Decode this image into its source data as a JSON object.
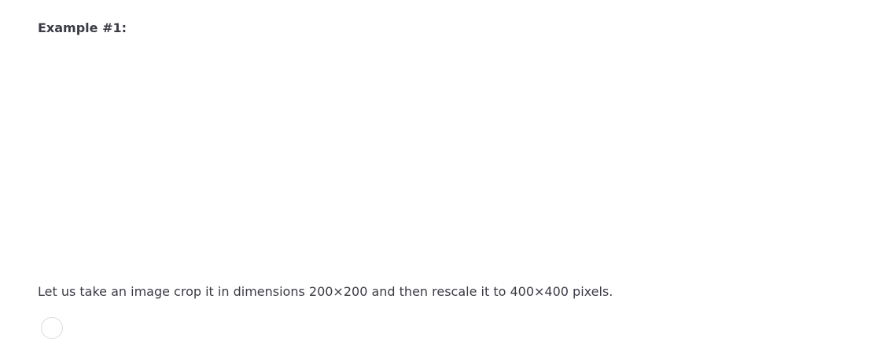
{
  "article": {
    "heading": "Example #1:",
    "paragraph": "Let us take an image crop it in dimensions 200×200 and then rescale it to 400×400 pixels."
  }
}
